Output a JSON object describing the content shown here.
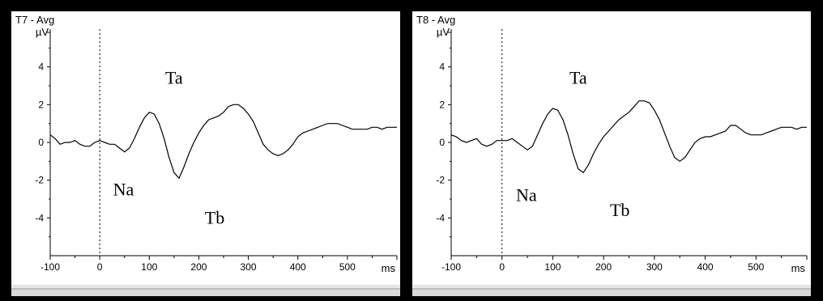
{
  "panels": [
    {
      "title": "T7 - Avg",
      "ylabel": "µV",
      "xlabel": "ms"
    },
    {
      "title": "T8 - Avg",
      "ylabel": "µV",
      "xlabel": "ms"
    }
  ],
  "chart_data": [
    {
      "type": "line",
      "title": "T7 - Avg",
      "ylabel": "µV",
      "xlabel": "ms",
      "xlim": [
        -100,
        600
      ],
      "ylim": [
        -6,
        6
      ],
      "xticks": [
        -100,
        0,
        100,
        200,
        300,
        400,
        500
      ],
      "yticks": [
        4,
        2,
        0,
        -2,
        -4
      ],
      "x": [
        -100,
        -90,
        -80,
        -70,
        -60,
        -50,
        -40,
        -30,
        -20,
        -10,
        0,
        10,
        20,
        30,
        40,
        50,
        60,
        70,
        80,
        90,
        100,
        110,
        120,
        130,
        140,
        150,
        160,
        170,
        180,
        190,
        200,
        210,
        220,
        230,
        240,
        250,
        260,
        270,
        280,
        290,
        300,
        310,
        320,
        330,
        340,
        350,
        360,
        370,
        380,
        390,
        400,
        410,
        420,
        430,
        440,
        450,
        460,
        470,
        480,
        490,
        500,
        510,
        520,
        530,
        540,
        550,
        560,
        570,
        580,
        590,
        600
      ],
      "series": [
        {
          "values": [
            0.4,
            0.2,
            -0.1,
            0.0,
            0.0,
            0.1,
            -0.1,
            -0.2,
            -0.2,
            0.0,
            0.1,
            0.0,
            -0.1,
            -0.1,
            -0.3,
            -0.5,
            -0.3,
            0.2,
            0.8,
            1.3,
            1.6,
            1.5,
            1.0,
            0.2,
            -0.8,
            -1.6,
            -1.9,
            -1.3,
            -0.6,
            0.0,
            0.5,
            0.9,
            1.2,
            1.3,
            1.4,
            1.6,
            1.9,
            2.0,
            2.0,
            1.8,
            1.5,
            1.1,
            0.5,
            -0.1,
            -0.4,
            -0.6,
            -0.7,
            -0.6,
            -0.4,
            -0.1,
            0.3,
            0.5,
            0.6,
            0.7,
            0.8,
            0.9,
            1.0,
            1.0,
            1.0,
            0.9,
            0.8,
            0.7,
            0.7,
            0.7,
            0.7,
            0.8,
            0.8,
            0.7,
            0.8,
            0.8,
            0.8
          ]
        }
      ],
      "annotations": [
        {
          "text": "Ta",
          "x": 150,
          "y": 3.1
        },
        {
          "text": "Na",
          "x": 48,
          "y": -2.8
        },
        {
          "text": "Tb",
          "x": 232,
          "y": -4.3
        }
      ]
    },
    {
      "type": "line",
      "title": "T8 - Avg",
      "ylabel": "µV",
      "xlabel": "ms",
      "xlim": [
        -100,
        600
      ],
      "ylim": [
        -6,
        6
      ],
      "xticks": [
        -100,
        0,
        100,
        200,
        300,
        400,
        500
      ],
      "yticks": [
        4,
        2,
        0,
        -2,
        -4
      ],
      "x": [
        -100,
        -90,
        -80,
        -70,
        -60,
        -50,
        -40,
        -30,
        -20,
        -10,
        0,
        10,
        20,
        30,
        40,
        50,
        60,
        70,
        80,
        90,
        100,
        110,
        120,
        130,
        140,
        150,
        160,
        170,
        180,
        190,
        200,
        210,
        220,
        230,
        240,
        250,
        260,
        270,
        280,
        290,
        300,
        310,
        320,
        330,
        340,
        350,
        360,
        370,
        380,
        390,
        400,
        410,
        420,
        430,
        440,
        450,
        460,
        470,
        480,
        490,
        500,
        510,
        520,
        530,
        540,
        550,
        560,
        570,
        580,
        590,
        600
      ],
      "series": [
        {
          "values": [
            0.4,
            0.3,
            0.1,
            0.0,
            0.1,
            0.2,
            -0.1,
            -0.2,
            -0.1,
            0.1,
            0.1,
            0.1,
            0.2,
            0.0,
            -0.2,
            -0.4,
            -0.2,
            0.4,
            1.0,
            1.5,
            1.8,
            1.7,
            1.2,
            0.4,
            -0.6,
            -1.4,
            -1.6,
            -1.2,
            -0.6,
            -0.1,
            0.3,
            0.6,
            0.9,
            1.2,
            1.4,
            1.6,
            1.9,
            2.2,
            2.2,
            2.1,
            1.7,
            1.2,
            0.5,
            -0.2,
            -0.8,
            -1.0,
            -0.8,
            -0.4,
            0.0,
            0.2,
            0.3,
            0.3,
            0.4,
            0.5,
            0.6,
            0.9,
            0.9,
            0.7,
            0.5,
            0.4,
            0.4,
            0.4,
            0.5,
            0.6,
            0.7,
            0.8,
            0.8,
            0.8,
            0.7,
            0.8,
            0.8
          ]
        }
      ],
      "annotations": [
        {
          "text": "Ta",
          "x": 150,
          "y": 3.1
        },
        {
          "text": "Na",
          "x": 48,
          "y": -3.1
        },
        {
          "text": "Tb",
          "x": 232,
          "y": -3.9
        }
      ]
    }
  ]
}
